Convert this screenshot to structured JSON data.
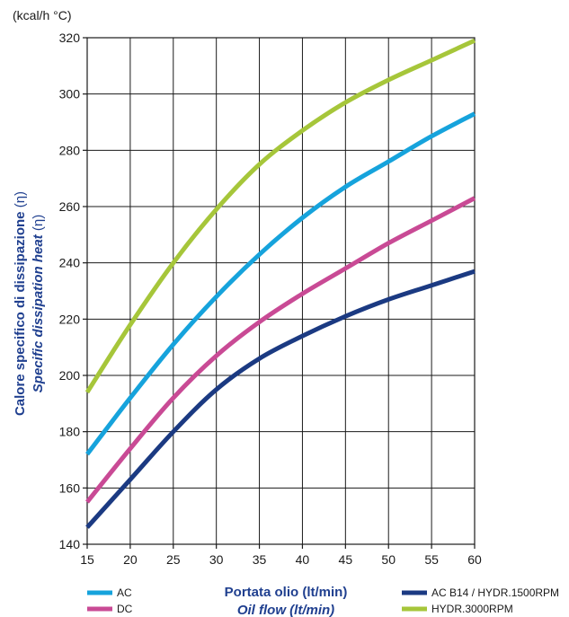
{
  "chart_data": {
    "type": "line",
    "unit_label": "(kcal/h °C)",
    "ylabel_it": "Calore specifico di dissipazione",
    "ylabel_it_symbol": "(η)",
    "ylabel_en": "Specific dissipation heat",
    "ylabel_en_symbol": "(η)",
    "xlabel_it": "Portata olio (lt/min)",
    "xlabel_en": "Oil flow (lt/min)",
    "xlim": [
      15,
      60
    ],
    "ylim": [
      140,
      320
    ],
    "xticks": [
      15,
      20,
      25,
      30,
      35,
      40,
      45,
      50,
      55,
      60
    ],
    "yticks": [
      140,
      160,
      180,
      200,
      220,
      240,
      260,
      280,
      300,
      320
    ],
    "grid": true,
    "legend_position": "bottom",
    "series": [
      {
        "name": "HYDR.3000RPM",
        "color": "#a6c63a",
        "x": [
          15,
          20,
          25,
          30,
          35,
          40,
          45,
          50,
          55,
          60
        ],
        "y": [
          194,
          218,
          240,
          259,
          275,
          287,
          297,
          305,
          312,
          319
        ]
      },
      {
        "name": "AC",
        "color": "#16a3dc",
        "x": [
          15,
          20,
          25,
          30,
          35,
          40,
          45,
          50,
          55,
          60
        ],
        "y": [
          172,
          192,
          211,
          228,
          243,
          256,
          267,
          276,
          285,
          293
        ]
      },
      {
        "name": "DC",
        "color": "#c94a95",
        "x": [
          15,
          20,
          25,
          30,
          35,
          40,
          45,
          50,
          55,
          60
        ],
        "y": [
          155,
          174,
          192,
          207,
          219,
          229,
          238,
          247,
          255,
          263
        ]
      },
      {
        "name": "AC B14 / HYDR.1500RPM",
        "color": "#1b3a82",
        "x": [
          15,
          20,
          25,
          30,
          35,
          40,
          45,
          50,
          55,
          60
        ],
        "y": [
          146,
          163,
          180,
          195,
          206,
          214,
          221,
          227,
          232,
          237
        ]
      }
    ]
  }
}
